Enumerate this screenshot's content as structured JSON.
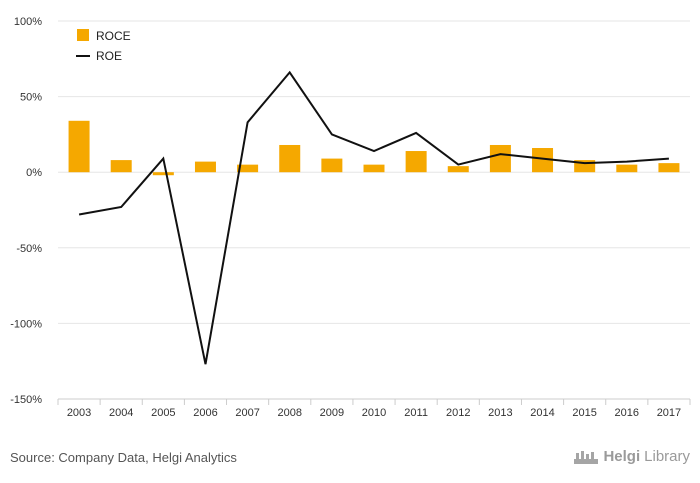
{
  "colors": {
    "roce": "#f5a800",
    "roe": "#111111",
    "grid": "#e6e6e6",
    "axis": "#cccccc"
  },
  "chart_data": {
    "type": "bar",
    "categories": [
      "2003",
      "2004",
      "2005",
      "2006",
      "2007",
      "2008",
      "2009",
      "2010",
      "2011",
      "2012",
      "2013",
      "2014",
      "2015",
      "2016",
      "2017"
    ],
    "series": [
      {
        "name": "ROCE",
        "type": "bar",
        "values": [
          34,
          8,
          -2,
          7,
          5,
          18,
          9,
          5,
          14,
          4,
          18,
          16,
          8,
          5,
          6
        ]
      },
      {
        "name": "ROE",
        "type": "line",
        "values": [
          -28,
          -23,
          9,
          -127,
          33,
          66,
          25,
          14,
          26,
          5,
          12,
          9,
          6,
          7,
          9
        ]
      }
    ],
    "y_ticks": [
      "100%",
      "50%",
      "0%",
      "-50%",
      "-100%",
      "-150%"
    ],
    "y_tick_values": [
      100,
      50,
      0,
      -50,
      -100,
      -150
    ],
    "ylim": [
      -150,
      100
    ],
    "grid": true,
    "legend": "top-left",
    "legend_labels": [
      "ROCE",
      "ROE"
    ]
  },
  "footer": {
    "source": "Source: Company Data, Helgi Analytics",
    "logo_helgi": "Helgi",
    "logo_library": "Library"
  }
}
